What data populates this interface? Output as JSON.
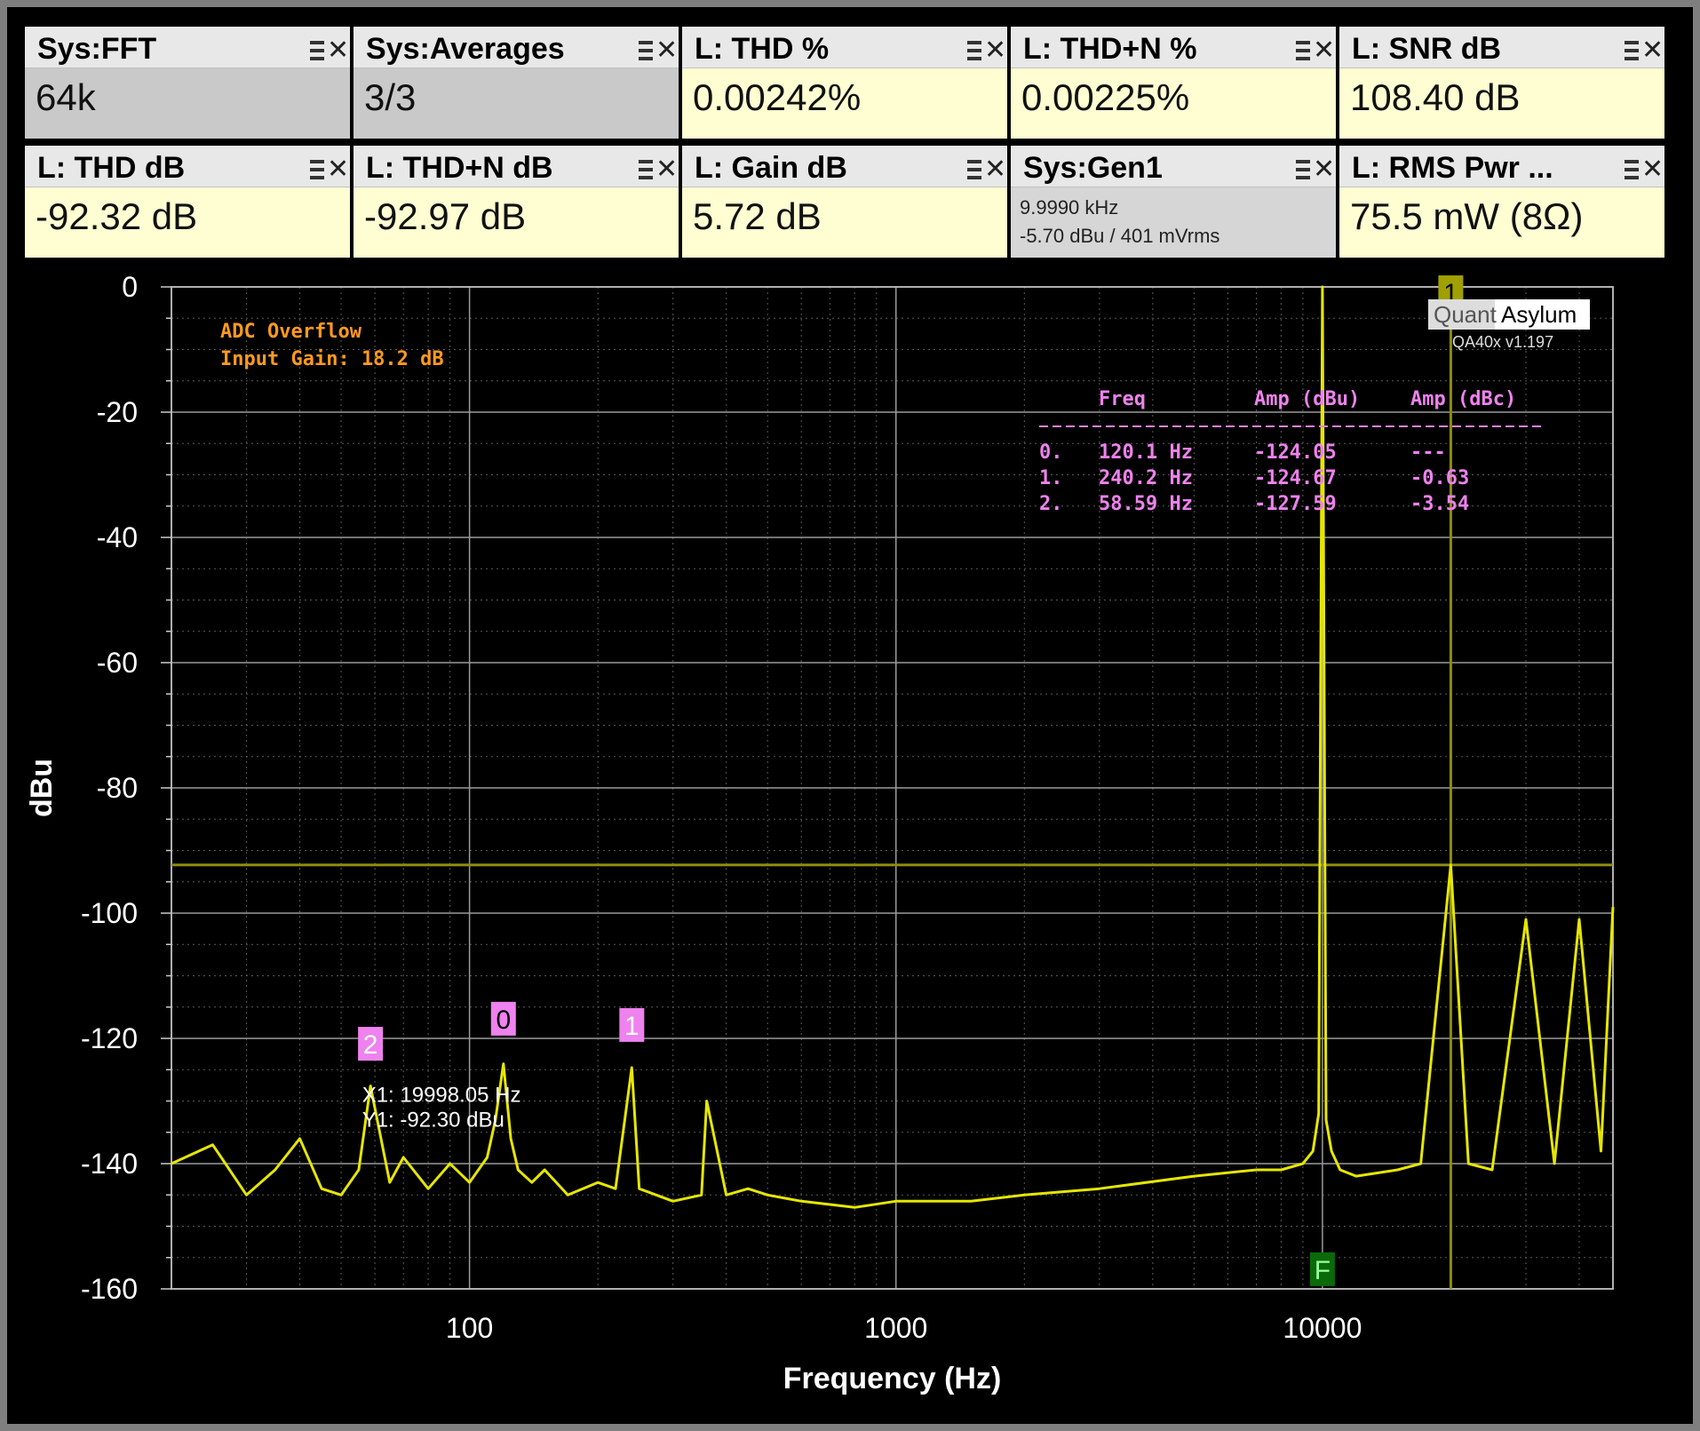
{
  "tiles": [
    {
      "title": "Sys:FFT",
      "value": "64k",
      "tone": "grey"
    },
    {
      "title": "Sys:Averages",
      "value": "3/3",
      "tone": "grey"
    },
    {
      "title": "L: THD %",
      "value": "0.00242%",
      "tone": "yellow"
    },
    {
      "title": "L: THD+N %",
      "value": "0.00225%",
      "tone": "yellow"
    },
    {
      "title": "L: SNR dB",
      "value": "108.40 dB",
      "tone": "yellow"
    },
    {
      "title": "L: THD dB",
      "value": "-92.32 dB",
      "tone": "yellow"
    },
    {
      "title": "L: THD+N dB",
      "value": "-92.97 dB",
      "tone": "yellow"
    },
    {
      "title": "L: Gain dB",
      "value": "5.72 dB",
      "tone": "yellow"
    },
    {
      "title": "Sys:Gen1",
      "line1": "9.9990 kHz",
      "line2": "-5.70 dBu  / 401 mVrms",
      "tone": "grey"
    },
    {
      "title": "L: RMS Pwr ...",
      "value": "75.5 mW (8Ω)",
      "tone": "yellow"
    }
  ],
  "chart_data": {
    "type": "line",
    "xlabel": "Frequency (Hz)",
    "ylabel": "dBu",
    "x_scale": "log",
    "xlim": [
      20,
      48000
    ],
    "ylim": [
      -160,
      0
    ],
    "x_ticks": [
      100,
      1000,
      10000
    ],
    "x_tick_labels": [
      "100",
      "1000",
      "10000"
    ],
    "y_ticks": [
      0,
      -20,
      -40,
      -60,
      -80,
      -100,
      -120,
      -140,
      -160
    ],
    "y_tick_labels": [
      "0",
      "-20",
      "-40",
      "-60",
      "-80",
      "-100",
      "-120",
      "-140",
      "-160"
    ],
    "grid": true,
    "series": [
      {
        "color": "#e6e600",
        "x": [
          20,
          25,
          30,
          35,
          40,
          45,
          50,
          55,
          58.59,
          65,
          70,
          80,
          90,
          100,
          110,
          115,
          120.1,
          125,
          130,
          140,
          150,
          170,
          200,
          220,
          240.2,
          250,
          300,
          350,
          360,
          400,
          450,
          500,
          600,
          800,
          1000,
          1500,
          2000,
          3000,
          5000,
          7000,
          8000,
          9000,
          9500,
          9800,
          9999,
          10200,
          10500,
          11000,
          12000,
          15000,
          17000,
          19998.05,
          22000,
          25000,
          29998,
          35000,
          39997,
          45000,
          48000
        ],
        "y": [
          -140,
          -137,
          -145,
          -141,
          -136,
          -144,
          -145,
          -141,
          -127.59,
          -143,
          -139,
          -144,
          -140,
          -143,
          -139,
          -133,
          -124.05,
          -136,
          -141,
          -143,
          -141,
          -145,
          -143,
          -144,
          -124.67,
          -144,
          -146,
          -145,
          -130,
          -145,
          -144,
          -145,
          -146,
          -147,
          -146,
          -146,
          -145,
          -144,
          -142,
          -141,
          -141,
          -140,
          -138,
          -132,
          0,
          -133,
          -138,
          -141,
          -142,
          -141,
          -140,
          -92.3,
          -140,
          -141,
          -101,
          -140,
          -101,
          -138,
          -99
        ]
      }
    ],
    "reference_line": {
      "y": -92.3
    },
    "markers": [
      {
        "label": "0",
        "x": 120.1
      },
      {
        "label": "1",
        "x": 240.2
      },
      {
        "label": "2",
        "x": 58.59
      },
      {
        "label": "1",
        "x": 19998.05
      },
      {
        "label": "F",
        "x": 9999
      }
    ],
    "cursor_readout": [
      "X1: 19998.05 Hz",
      "Y1: -92.30 dBu"
    ],
    "annotations": [
      "ADC Overflow",
      "Input  Gain: 18.2 dB"
    ],
    "peak_table": {
      "headers": [
        "Freq",
        "Amp (dBu)",
        "Amp (dBc)"
      ],
      "rows": [
        [
          "0.",
          "120.1 Hz",
          "-124.05",
          "---"
        ],
        [
          "1.",
          "240.2 Hz",
          "-124.67",
          "-0.63"
        ],
        [
          "2.",
          "58.59 Hz",
          "-127.59",
          "-3.54"
        ]
      ]
    },
    "logo": {
      "left": "Quant",
      "right": "Asylum"
    },
    "version": "QA40x v1.197"
  }
}
